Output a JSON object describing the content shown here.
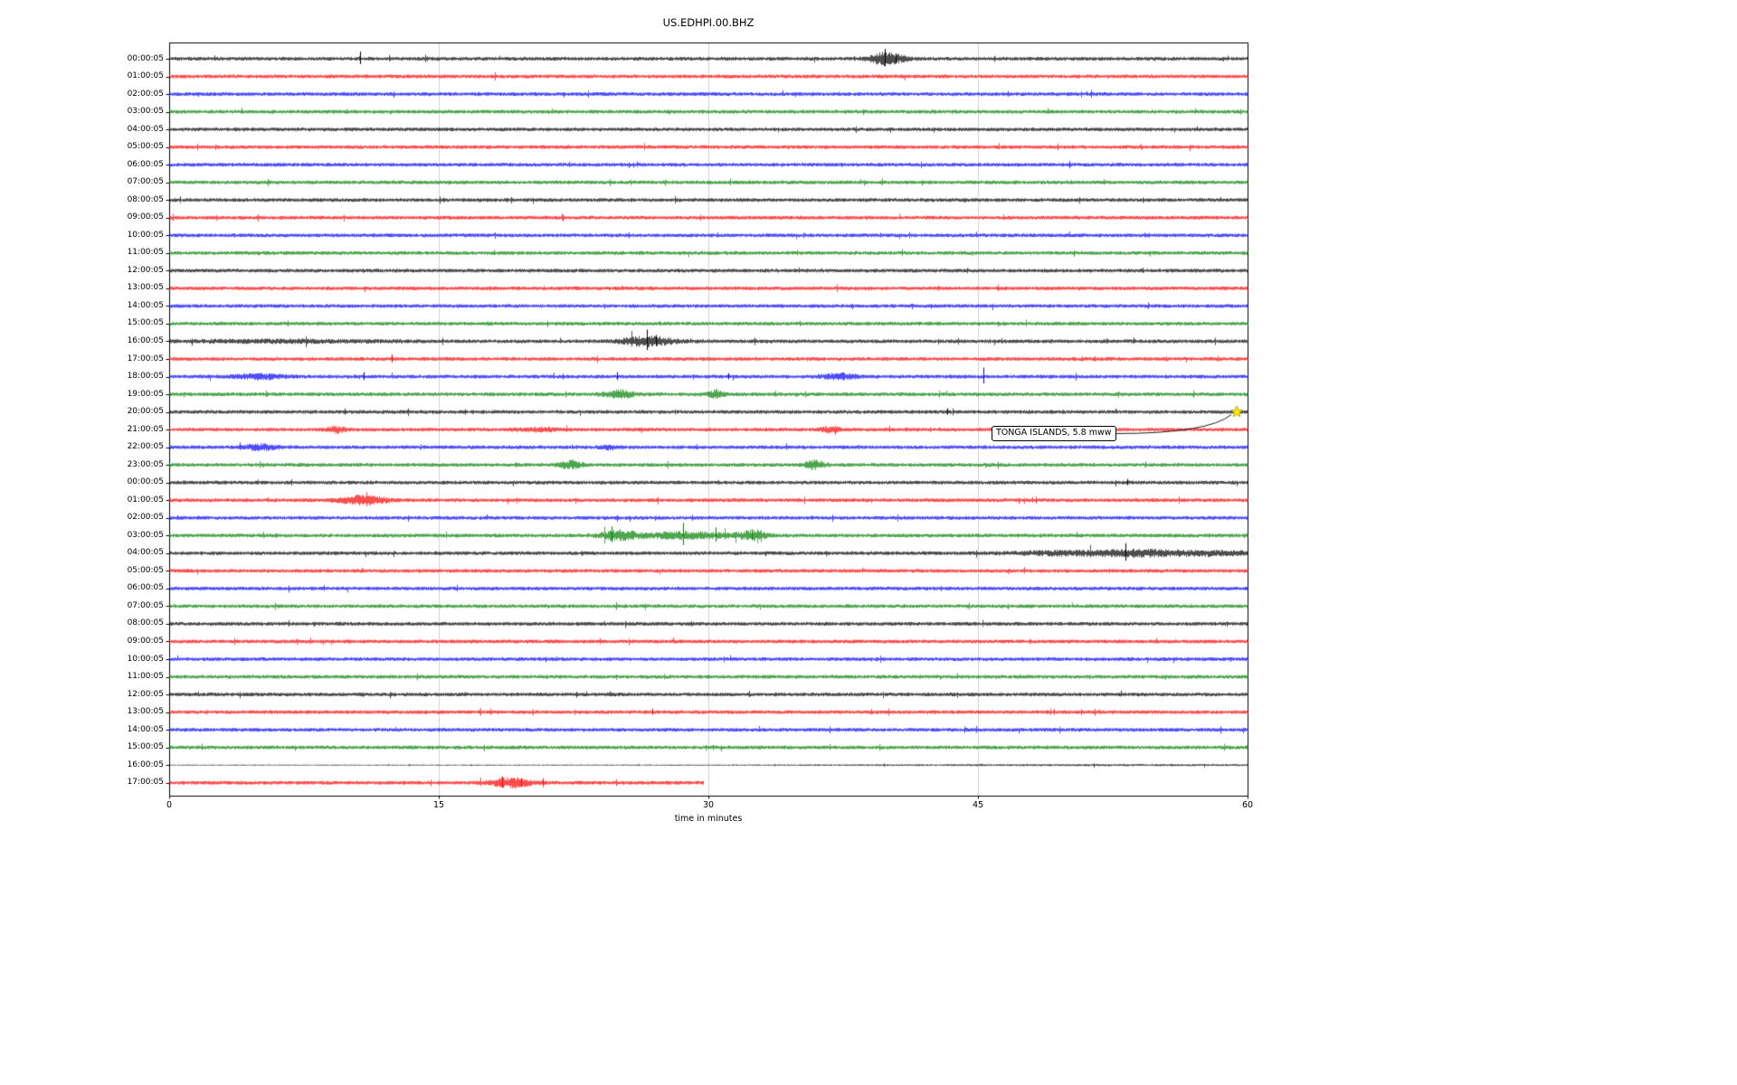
{
  "chart_data": {
    "type": "line",
    "subtype": "helicorder-seismogram",
    "title": "US.EDHPI.00.BHZ",
    "xlabel": "time in minutes",
    "xlim": [
      0,
      60
    ],
    "xticks": [
      "0",
      "15",
      "30",
      "45",
      "60"
    ],
    "xtick_minutes": [
      0,
      15,
      30,
      45,
      60
    ],
    "grid_minutes": [
      15,
      30,
      45
    ],
    "grid_color": "#cccccc",
    "frame_color": "#000000",
    "minutes_per_row": 60,
    "colors": {
      "k": "#000000",
      "r": "#ff0000",
      "b": "#0000ff",
      "g": "#008000"
    },
    "event_marker": {
      "row": 20,
      "minute": 59.4,
      "label": "TONGA ISLANDS, 5.8 mww",
      "marker": "yellow-star",
      "marker_fill": "#ffec00",
      "marker_edge": "#a89400"
    },
    "rows": [
      {
        "label": "00:00:05",
        "c": "k",
        "bursts": [
          {
            "t": 39.9,
            "w": 0.9,
            "a": 3.0
          }
        ],
        "spikes": [
          {
            "t": 10.6,
            "h": 8
          },
          {
            "t": 39.8,
            "h": 11
          },
          {
            "t": 40.4,
            "h": 6
          }
        ]
      },
      {
        "label": "01:00:05",
        "c": "r"
      },
      {
        "label": "02:00:05",
        "c": "b"
      },
      {
        "label": "03:00:05",
        "c": "g"
      },
      {
        "label": "04:00:05",
        "c": "k"
      },
      {
        "label": "05:00:05",
        "c": "r"
      },
      {
        "label": "06:00:05",
        "c": "b"
      },
      {
        "label": "07:00:05",
        "c": "g"
      },
      {
        "label": "08:00:05",
        "c": "k"
      },
      {
        "label": "09:00:05",
        "c": "r"
      },
      {
        "label": "10:00:05",
        "c": "b"
      },
      {
        "label": "11:00:05",
        "c": "g"
      },
      {
        "label": "12:00:05",
        "c": "k"
      },
      {
        "label": "13:00:05",
        "c": "r"
      },
      {
        "label": "14:00:05",
        "c": "b"
      },
      {
        "label": "15:00:05",
        "c": "g"
      },
      {
        "label": "16:00:05",
        "c": "k",
        "bursts": [
          {
            "t": 6.0,
            "w": 5.0,
            "a": 0.5
          },
          {
            "t": 26.6,
            "w": 1.4,
            "a": 2.2
          }
        ],
        "spikes": [
          {
            "t": 26.6,
            "h": 13
          },
          {
            "t": 27.1,
            "h": 7
          }
        ]
      },
      {
        "label": "17:00:05",
        "c": "r",
        "spikes": [
          {
            "t": 12.4,
            "h": 5
          }
        ]
      },
      {
        "label": "18:00:05",
        "c": "b",
        "bursts": [
          {
            "t": 5.0,
            "w": 1.5,
            "a": 1.0
          },
          {
            "t": 37.3,
            "w": 0.9,
            "a": 1.4
          }
        ],
        "spikes": [
          {
            "t": 10.8,
            "h": 5
          },
          {
            "t": 24.9,
            "h": 5
          },
          {
            "t": 31.1,
            "h": 4
          },
          {
            "t": 45.3,
            "h": 10
          }
        ]
      },
      {
        "label": "19:00:05",
        "c": "g",
        "bursts": [
          {
            "t": 25.0,
            "w": 0.8,
            "a": 1.8
          },
          {
            "t": 30.4,
            "w": 0.4,
            "a": 1.8
          }
        ]
      },
      {
        "label": "20:00:05",
        "c": "k",
        "spikes": [
          {
            "t": 43.3,
            "h": 4
          }
        ]
      },
      {
        "label": "21:00:05",
        "c": "r",
        "bursts": [
          {
            "t": 9.3,
            "w": 0.5,
            "a": 1.3
          },
          {
            "t": 20.5,
            "w": 1.0,
            "a": 0.8
          },
          {
            "t": 36.8,
            "w": 0.5,
            "a": 1.3
          }
        ]
      },
      {
        "label": "22:00:05",
        "c": "b",
        "bursts": [
          {
            "t": 5.0,
            "w": 0.9,
            "a": 1.2
          },
          {
            "t": 24.5,
            "w": 0.5,
            "a": 0.8
          }
        ]
      },
      {
        "label": "23:00:05",
        "c": "g",
        "bursts": [
          {
            "t": 22.3,
            "w": 0.6,
            "a": 1.8
          },
          {
            "t": 35.9,
            "w": 0.5,
            "a": 2.2
          }
        ]
      },
      {
        "label": "00:00:05",
        "c": "k",
        "spikes": [
          {
            "t": 53.3,
            "h": 4
          }
        ]
      },
      {
        "label": "01:00:05",
        "c": "r",
        "bursts": [
          {
            "t": 10.8,
            "w": 1.3,
            "a": 2.0
          }
        ]
      },
      {
        "label": "02:00:05",
        "c": "b"
      },
      {
        "label": "03:00:05",
        "c": "g",
        "bursts": [
          {
            "t": 25.0,
            "w": 1.0,
            "a": 2.2
          },
          {
            "t": 28.8,
            "w": 2.4,
            "a": 1.6
          },
          {
            "t": 32.4,
            "w": 0.8,
            "a": 1.8
          }
        ],
        "spikes": [
          {
            "t": 24.6,
            "h": 10
          },
          {
            "t": 28.6,
            "h": 14
          },
          {
            "t": 30.4,
            "h": 9
          },
          {
            "t": 32.4,
            "h": 7
          }
        ]
      },
      {
        "label": "04:00:05",
        "c": "k",
        "bursts": [
          {
            "t": 50.0,
            "w": 3.0,
            "a": 0.9
          },
          {
            "t": 54.5,
            "w": 2.5,
            "a": 1.3
          },
          {
            "t": 58.5,
            "w": 2.0,
            "a": 0.9
          }
        ],
        "spikes": [
          {
            "t": 53.2,
            "h": 11
          }
        ]
      },
      {
        "label": "05:00:05",
        "c": "r"
      },
      {
        "label": "06:00:05",
        "c": "b"
      },
      {
        "label": "07:00:05",
        "c": "g"
      },
      {
        "label": "08:00:05",
        "c": "k"
      },
      {
        "label": "09:00:05",
        "c": "r"
      },
      {
        "label": "10:00:05",
        "c": "b"
      },
      {
        "label": "11:00:05",
        "c": "g"
      },
      {
        "label": "12:00:05",
        "c": "k"
      },
      {
        "label": "13:00:05",
        "c": "r",
        "spikes": [
          {
            "t": 26.9,
            "h": 4
          }
        ]
      },
      {
        "label": "14:00:05",
        "c": "b"
      },
      {
        "label": "15:00:05",
        "c": "g"
      },
      {
        "label": "16:00:05",
        "c": "k",
        "base": 0.3,
        "bursts": [
          {
            "t": 52.0,
            "w": 16.0,
            "a": 1.0
          }
        ]
      },
      {
        "label": "17:00:05",
        "c": "r",
        "end": 29.7,
        "bursts": [
          {
            "t": 19.0,
            "w": 1.1,
            "a": 2.2
          }
        ],
        "spikes": [
          {
            "t": 18.5,
            "h": 7
          },
          {
            "t": 19.6,
            "h": 5
          },
          {
            "t": 20.8,
            "h": 4
          }
        ]
      }
    ]
  }
}
